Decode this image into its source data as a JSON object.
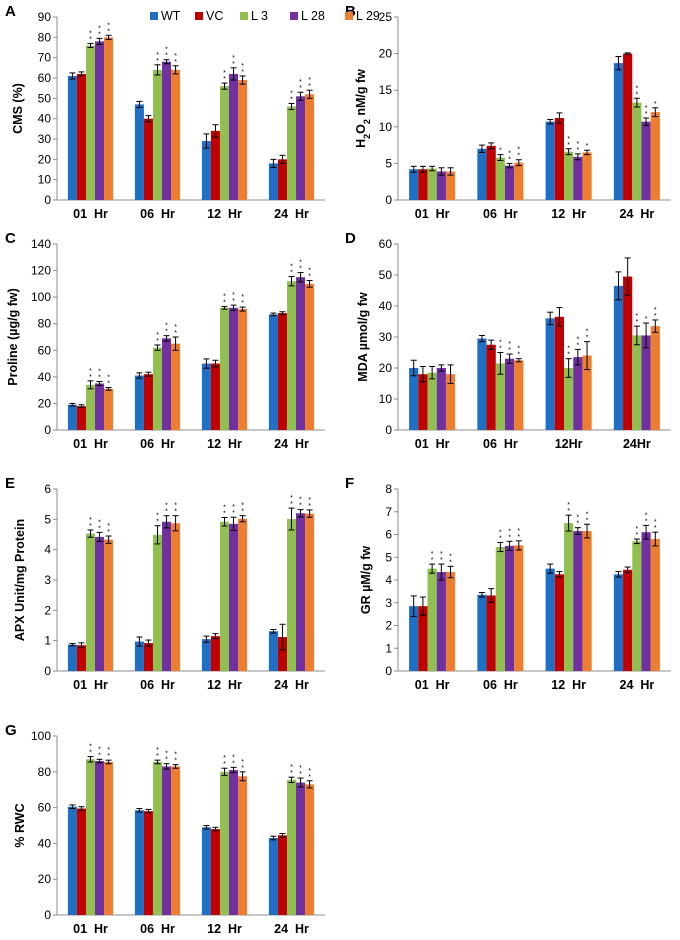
{
  "legend": {
    "series": [
      "WT",
      "VC",
      "L 3",
      "L 28",
      "L 29"
    ],
    "colors": [
      "#1f6fc5",
      "#c00000",
      "#92c050",
      "#7030a0",
      "#ed7d31"
    ]
  },
  "chart_data": [
    {
      "id": "A",
      "type": "bar",
      "letter": "A",
      "ylabel": "CMS (%)",
      "ylim": [
        0,
        90
      ],
      "ystep": 10,
      "yticks": [
        "0",
        "10",
        "20",
        "30",
        "40",
        "50",
        "60",
        "70",
        "80",
        "90"
      ],
      "categories": [
        "01  Hr",
        "06  Hr",
        "12  Hr",
        "24  Hr"
      ],
      "series": [
        {
          "name": "WT",
          "values": [
            61,
            47,
            29,
            18
          ],
          "errors": [
            1.5,
            1.5,
            3.5,
            2
          ]
        },
        {
          "name": "VC",
          "values": [
            62,
            40,
            34,
            20
          ],
          "errors": [
            1,
            1.5,
            3,
            2
          ]
        },
        {
          "name": "L 3",
          "values": [
            76,
            64,
            56,
            46
          ],
          "errors": [
            1,
            2.5,
            1.5,
            1.5
          ]
        },
        {
          "name": "L 28",
          "values": [
            78,
            68,
            62,
            51
          ],
          "errors": [
            1.5,
            1,
            3,
            2
          ]
        },
        {
          "name": "L 29",
          "values": [
            80,
            64,
            59,
            52
          ],
          "errors": [
            1,
            2,
            2,
            2
          ]
        }
      ],
      "significance": [
        [
          "",
          "",
          "",
          ""
        ],
        [
          "",
          "",
          "",
          ""
        ],
        [
          "* *",
          "* *",
          "* *",
          "* *"
        ],
        [
          "* *",
          "* *",
          "* *",
          "* *"
        ],
        [
          "* *",
          "* *",
          "* *",
          "* *"
        ]
      ]
    },
    {
      "id": "B",
      "type": "bar",
      "letter": "B",
      "ylabel": "H2O2 nM/g fw",
      "ylabel_main": "H",
      "ylabel_sub": "2",
      "ylabel_mid": "O",
      "ylabel_sub2": "2",
      "ylabel_tail": " nM/g fw",
      "ylim": [
        0,
        25
      ],
      "ystep": 5,
      "yticks": [
        "0",
        "5",
        "10",
        "15",
        "20",
        "25"
      ],
      "categories": [
        "01  Hr",
        "06  Hr",
        "12  Hr",
        "24  Hr"
      ],
      "series": [
        {
          "name": "WT",
          "values": [
            4.2,
            7.0,
            10.7,
            18.7
          ],
          "errors": [
            0.4,
            0.5,
            0.3,
            0.9
          ]
        },
        {
          "name": "VC",
          "values": [
            4.2,
            7.4,
            11.2,
            20.0
          ],
          "errors": [
            0.4,
            0.4,
            0.7,
            0.1
          ]
        },
        {
          "name": "L 3",
          "values": [
            4.3,
            5.8,
            6.6,
            13.3
          ],
          "errors": [
            0.3,
            0.4,
            0.4,
            0.6
          ]
        },
        {
          "name": "L 28",
          "values": [
            3.9,
            4.7,
            5.9,
            10.7
          ],
          "errors": [
            0.5,
            0.3,
            0.4,
            0.5
          ]
        },
        {
          "name": "L 29",
          "values": [
            3.9,
            5.1,
            6.5,
            12.0
          ],
          "errors": [
            0.5,
            0.4,
            0.3,
            0.6
          ]
        }
      ],
      "significance": [
        [
          "",
          "",
          "",
          ""
        ],
        [
          "",
          "",
          "",
          ""
        ],
        [
          "",
          "*",
          "* *",
          "* *"
        ],
        [
          "",
          "* *",
          "* *",
          "* *"
        ],
        [
          "",
          "* *",
          "*",
          "*"
        ]
      ]
    },
    {
      "id": "C",
      "type": "bar",
      "letter": "C",
      "ylabel": "Proline (µg/g fw)",
      "ylim": [
        0,
        140
      ],
      "ystep": 20,
      "yticks": [
        "0",
        "20",
        "40",
        "60",
        "80",
        "100",
        "120",
        "140"
      ],
      "categories": [
        "01  Hr",
        "06  Hr",
        "12  Hr",
        "24  Hr"
      ],
      "series": [
        {
          "name": "WT",
          "values": [
            19,
            41,
            50,
            87
          ],
          "errors": [
            1,
            2,
            3.5,
            1
          ]
        },
        {
          "name": "VC",
          "values": [
            18,
            42,
            50,
            88
          ],
          "errors": [
            1,
            1.5,
            2.5,
            1
          ]
        },
        {
          "name": "L 3",
          "values": [
            34,
            62,
            92,
            112
          ],
          "errors": [
            3,
            2,
            1,
            3.5
          ]
        },
        {
          "name": "L 28",
          "values": [
            35,
            69,
            92,
            115
          ],
          "errors": [
            1.5,
            2,
            2,
            3.5
          ]
        },
        {
          "name": "L 29",
          "values": [
            31,
            65,
            91,
            110
          ],
          "errors": [
            1,
            5,
            1.5,
            2.5
          ]
        }
      ],
      "significance": [
        [
          "",
          "",
          "",
          ""
        ],
        [
          "",
          "",
          "",
          ""
        ],
        [
          "* *",
          "* *",
          "* *",
          "* *"
        ],
        [
          "* *",
          "* *",
          "* *",
          "* *"
        ],
        [
          "* *",
          "* *",
          "* *",
          "* *"
        ]
      ]
    },
    {
      "id": "D",
      "type": "bar",
      "letter": "D",
      "ylabel": "MDA µmol/g fw",
      "ylim": [
        0,
        60
      ],
      "ystep": 10,
      "yticks": [
        "0",
        "10",
        "20",
        "30",
        "40",
        "50",
        "60"
      ],
      "categories": [
        "01  Hr",
        "06  Hr",
        "12Hr",
        "24Hr"
      ],
      "series": [
        {
          "name": "WT",
          "values": [
            20,
            29.5,
            36,
            46.5
          ],
          "errors": [
            2.5,
            1,
            2,
            4.5
          ]
        },
        {
          "name": "VC",
          "values": [
            18,
            27.5,
            36.5,
            49.5
          ],
          "errors": [
            2.5,
            1.5,
            3,
            6
          ]
        },
        {
          "name": "L 3",
          "values": [
            18.5,
            21.5,
            20,
            30.5
          ],
          "errors": [
            2,
            3.5,
            3,
            3
          ]
        },
        {
          "name": "L 28",
          "values": [
            20,
            23,
            23.5,
            30.5
          ],
          "errors": [
            1,
            1.5,
            2.5,
            4
          ]
        },
        {
          "name": "L 29",
          "values": [
            18,
            22.5,
            24,
            33.5
          ],
          "errors": [
            3,
            0.5,
            4.5,
            2
          ]
        }
      ],
      "significance": [
        [
          "",
          "",
          "",
          ""
        ],
        [
          "",
          "",
          "",
          ""
        ],
        [
          "",
          "* *",
          "* *",
          "* *"
        ],
        [
          "",
          "* *",
          "* *",
          "*"
        ],
        [
          "",
          "* *",
          "* *",
          "* *"
        ]
      ]
    },
    {
      "id": "E",
      "type": "bar",
      "letter": "E",
      "ylabel": "APX Unit/mg Protein",
      "ylim": [
        0,
        6
      ],
      "ystep": 1,
      "yticks": [
        "0",
        "1",
        "2",
        "3",
        "4",
        "5",
        "6"
      ],
      "categories": [
        "01  Hr",
        "06  Hr",
        "12  Hr",
        "24  Hr"
      ],
      "series": [
        {
          "name": "WT",
          "values": [
            0.87,
            0.97,
            1.05,
            1.31
          ],
          "errors": [
            0.04,
            0.15,
            0.1,
            0.06
          ]
        },
        {
          "name": "VC",
          "values": [
            0.85,
            0.92,
            1.15,
            1.12
          ],
          "errors": [
            0.08,
            0.1,
            0.08,
            0.42
          ]
        },
        {
          "name": "L 3",
          "values": [
            4.53,
            4.49,
            4.92,
            5.01
          ],
          "errors": [
            0.12,
            0.3,
            0.14,
            0.36
          ]
        },
        {
          "name": "L 28",
          "values": [
            4.42,
            4.92,
            4.85,
            5.2
          ],
          "errors": [
            0.15,
            0.2,
            0.22,
            0.12
          ]
        },
        {
          "name": "L 29",
          "values": [
            4.33,
            4.87,
            5.02,
            5.19
          ],
          "errors": [
            0.12,
            0.25,
            0.1,
            0.12
          ]
        }
      ],
      "significance": [
        [
          "",
          "",
          "",
          ""
        ],
        [
          "",
          "",
          "",
          ""
        ],
        [
          "* *",
          "* *",
          "* *",
          "* *"
        ],
        [
          "* *",
          "* *",
          "* *",
          "* *"
        ],
        [
          "* *",
          "* *",
          "* *",
          "* *"
        ]
      ]
    },
    {
      "id": "F",
      "type": "bar",
      "letter": "F",
      "ylabel": "GR µM/g fw",
      "ylim": [
        0,
        8
      ],
      "ystep": 1,
      "yticks": [
        "0",
        "1",
        "2",
        "3",
        "4",
        "5",
        "6",
        "7",
        "8"
      ],
      "categories": [
        "01  Hr",
        "06  Hr",
        "12  Hr",
        "24  Hr"
      ],
      "series": [
        {
          "name": "WT",
          "values": [
            2.85,
            3.35,
            4.5,
            4.25
          ],
          "errors": [
            0.45,
            0.1,
            0.2,
            0.12
          ]
        },
        {
          "name": "VC",
          "values": [
            2.85,
            3.32,
            4.25,
            4.45
          ],
          "errors": [
            0.4,
            0.3,
            0.12,
            0.12
          ]
        },
        {
          "name": "L 3",
          "values": [
            4.5,
            5.45,
            6.5,
            5.7
          ],
          "errors": [
            0.2,
            0.2,
            0.35,
            0.1
          ]
        },
        {
          "name": "L 28",
          "values": [
            4.35,
            5.5,
            6.15,
            6.1
          ],
          "errors": [
            0.35,
            0.2,
            0.15,
            0.3
          ]
        },
        {
          "name": "L 29",
          "values": [
            4.35,
            5.52,
            6.15,
            5.8
          ],
          "errors": [
            0.25,
            0.2,
            0.3,
            0.3
          ]
        }
      ],
      "significance": [
        [
          "",
          "",
          "",
          ""
        ],
        [
          "",
          "",
          "",
          ""
        ],
        [
          "* *",
          "* *",
          "* *",
          "* *"
        ],
        [
          "* *",
          "* *",
          "* *",
          "* *"
        ],
        [
          "* *",
          "* *",
          "* *",
          "* *"
        ]
      ]
    },
    {
      "id": "G",
      "type": "bar",
      "letter": "G",
      "ylabel": "% RWC",
      "ylim": [
        0,
        100
      ],
      "ystep": 20,
      "yticks": [
        "0",
        "20",
        "40",
        "60",
        "80",
        "100"
      ],
      "categories": [
        "01  Hr",
        "06  Hr",
        "12  Hr",
        "24  Hr"
      ],
      "series": [
        {
          "name": "WT",
          "values": [
            60.5,
            58.5,
            49,
            43
          ],
          "errors": [
            1,
            1,
            1,
            1
          ]
        },
        {
          "name": "VC",
          "values": [
            59.5,
            58,
            48,
            44.5
          ],
          "errors": [
            1,
            1,
            1,
            1
          ]
        },
        {
          "name": "L 3",
          "values": [
            87,
            85.5,
            80,
            75.5
          ],
          "errors": [
            1.5,
            1,
            2,
            1.5
          ]
        },
        {
          "name": "L 28",
          "values": [
            86,
            83,
            81,
            74
          ],
          "errors": [
            1,
            1.5,
            1.5,
            2.5
          ]
        },
        {
          "name": "L 29",
          "values": [
            85.5,
            83,
            77.5,
            73
          ],
          "errors": [
            1,
            1,
            2.5,
            2
          ]
        }
      ],
      "significance": [
        [
          "",
          "",
          "",
          ""
        ],
        [
          "",
          "",
          "",
          ""
        ],
        [
          "* *",
          "* *",
          "* *",
          "* *"
        ],
        [
          "* *",
          "* *",
          "* *",
          "* *"
        ],
        [
          "* *",
          "* *",
          "* *",
          "* *"
        ]
      ]
    }
  ]
}
